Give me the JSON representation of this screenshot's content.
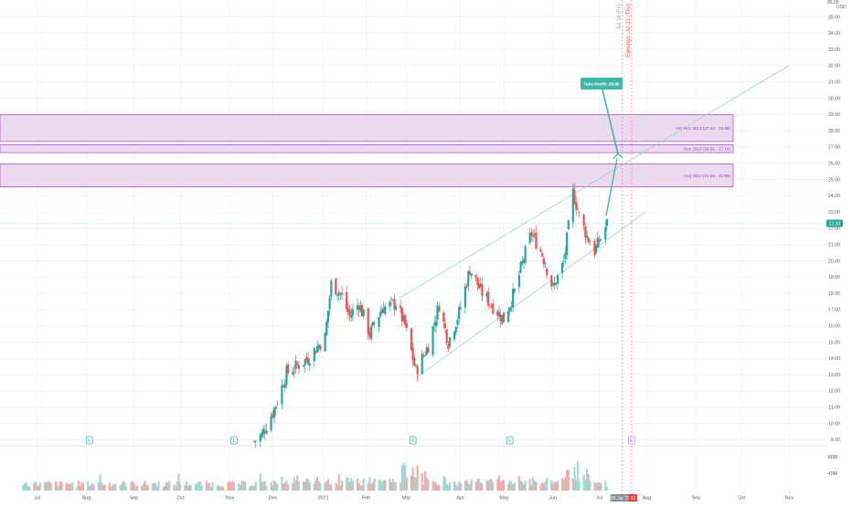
{
  "header": {
    "currency": "USD",
    "scale_top_value": "36.00"
  },
  "colors": {
    "up": "#26a69a",
    "down": "#ef5350",
    "vol_up": "#9fd8d2",
    "vol_down": "#f6a9a7",
    "zone_fill": "#e9d3ef",
    "zone_stroke": "#b04fc4",
    "zone_text": "#9c3fb0",
    "channel": "#9ad3cc",
    "arrow": "#3eb8a6",
    "grid": "#f0f3f7",
    "axis_text": "#555b66",
    "event_red": "#ef5350",
    "event_pink": "#f48fb1",
    "price_line": "#7fcfc4"
  },
  "chart_data": {
    "type": "candlestick",
    "ylim": [
      8.5,
      36
    ],
    "x_axis_labels": [
      "Jul",
      "Aug",
      "Sep",
      "Oct",
      "Nov",
      "Dec",
      "2021",
      "Feb",
      "Mar",
      "Apr",
      "May",
      "Jun",
      "Jul",
      "Aug",
      "Sep",
      "Oct",
      "Nov"
    ],
    "y_ticks": [
      "35.00",
      "34.00",
      "33.00",
      "32.00",
      "31.00",
      "30.00",
      "29.00",
      "28.00",
      "27.00",
      "26.00",
      "25.00",
      "24.00",
      "23.00",
      "22.00",
      "21.00",
      "20.00",
      "19.00",
      "18.00",
      "17.00",
      "16.00",
      "15.00",
      "14.00",
      "13.00",
      "12.00",
      "11.00",
      "10.00",
      "9.00"
    ],
    "volume_ticks": [
      "80M",
      "40M"
    ],
    "last_price": "22.30",
    "price_key_points": [
      {
        "date": "2020-11-19",
        "price": 8.9
      },
      {
        "date": "2020-11-24",
        "price": 9.3
      },
      {
        "date": "2020-12-02",
        "price": 10.9
      },
      {
        "date": "2020-12-10",
        "price": 13.1
      },
      {
        "date": "2020-12-24",
        "price": 14.0
      },
      {
        "date": "2021-01-04",
        "price": 15.3
      },
      {
        "date": "2021-01-08",
        "price": 18.6
      },
      {
        "date": "2021-01-14",
        "price": 18.0
      },
      {
        "date": "2021-01-20",
        "price": 16.6
      },
      {
        "date": "2021-01-26",
        "price": 17.4
      },
      {
        "date": "2021-02-02",
        "price": 15.5
      },
      {
        "date": "2021-02-10",
        "price": 17.1
      },
      {
        "date": "2021-02-19",
        "price": 17.4
      },
      {
        "date": "2021-02-25",
        "price": 16.0
      },
      {
        "date": "2021-03-04",
        "price": 13.2
      },
      {
        "date": "2021-03-12",
        "price": 14.8
      },
      {
        "date": "2021-03-19",
        "price": 17.3
      },
      {
        "date": "2021-03-25",
        "price": 15.0
      },
      {
        "date": "2021-04-01",
        "price": 16.8
      },
      {
        "date": "2021-04-08",
        "price": 19.5
      },
      {
        "date": "2021-04-16",
        "price": 18.0
      },
      {
        "date": "2021-04-23",
        "price": 17.2
      },
      {
        "date": "2021-04-30",
        "price": 16.4
      },
      {
        "date": "2021-05-07",
        "price": 18.1
      },
      {
        "date": "2021-05-14",
        "price": 20.5
      },
      {
        "date": "2021-05-18",
        "price": 21.7
      },
      {
        "date": "2021-05-25",
        "price": 20.4
      },
      {
        "date": "2021-06-01",
        "price": 18.3
      },
      {
        "date": "2021-06-08",
        "price": 19.9
      },
      {
        "date": "2021-06-14",
        "price": 24.2
      },
      {
        "date": "2021-06-18",
        "price": 22.8
      },
      {
        "date": "2021-06-23",
        "price": 21.5
      },
      {
        "date": "2021-06-28",
        "price": 20.6
      },
      {
        "date": "2021-07-02",
        "price": 21.4
      },
      {
        "date": "2021-07-06",
        "price": 22.3
      }
    ],
    "channel": {
      "upper": [
        {
          "date": "2021-02-21",
          "price": 17.7
        },
        {
          "date": "2021-11-01",
          "price": 32.0
        }
      ],
      "lower": [
        {
          "date": "2021-03-04",
          "price": 12.8
        },
        {
          "date": "2021-07-31",
          "price": 23.0
        }
      ]
    },
    "zones": [
      {
        "label": "Oct-Nov 2013 (27.34 - 28.98)",
        "low": 27.34,
        "high": 28.98
      },
      {
        "label": "Dec 2013 (26.65 - 27.14)",
        "low": 26.65,
        "high": 27.14
      },
      {
        "label": "Aug 2013 (24.55 - 25.95)",
        "low": 24.55,
        "high": 25.95
      }
    ],
    "take_profit": {
      "label": "Take Profit: 26.80",
      "price": 26.8
    },
    "event_lines": [
      {
        "label": "Jul 16 (Fri)",
        "date": "2021-07-16"
      },
      {
        "label": "Earnings: Jul 22 (Thu)",
        "date": "2021-07-22"
      }
    ],
    "event_markers": [
      {
        "date": "2020-08-04",
        "letter": "E",
        "kind": "earnings"
      },
      {
        "date": "2020-11-06",
        "letter": "E",
        "kind": "earnings"
      },
      {
        "date": "2021-03-02",
        "letter": "E",
        "kind": "earnings"
      },
      {
        "date": "2021-05-04",
        "letter": "E",
        "kind": "earnings"
      },
      {
        "date": "2021-07-22",
        "letter": "E",
        "kind": "upcoming"
      }
    ],
    "axis_date_badges": [
      "16 Jul '21",
      "22"
    ]
  }
}
